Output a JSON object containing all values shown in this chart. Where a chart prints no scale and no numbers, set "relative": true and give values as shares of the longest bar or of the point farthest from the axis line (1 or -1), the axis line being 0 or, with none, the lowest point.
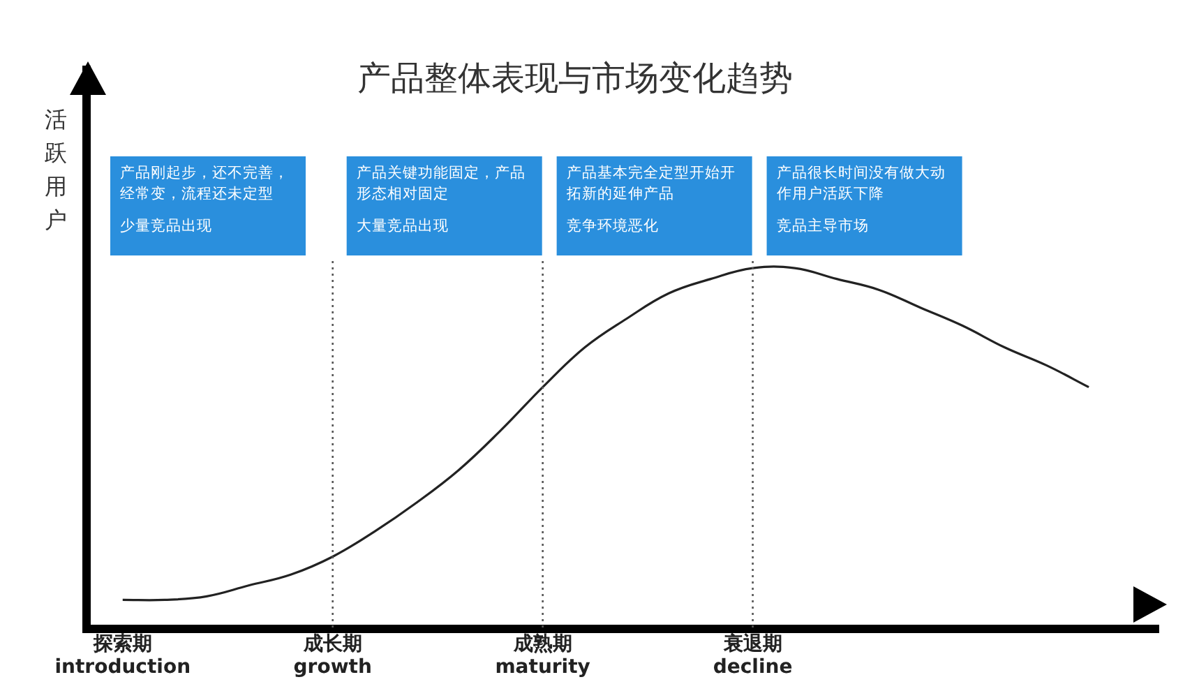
{
  "chart_data": {
    "type": "line",
    "title": "产品整体表现与市场变化趋势",
    "ylabel": "活跃用户",
    "relative": true,
    "categories": [
      "探索期\nintroduction",
      null,
      null,
      null,
      null,
      "成长期\ngrowth",
      null,
      null,
      null,
      null,
      "成熟期\nmaturity",
      null,
      null,
      null,
      null,
      "衰退期\ndecline",
      null,
      null,
      null,
      null,
      null,
      null,
      null,
      null
    ],
    "series": [
      {
        "color": "#222222",
        "values": [
          0.08,
          0.08,
          0.09,
          0.12,
          0.15,
          0.2,
          0.27,
          0.35,
          0.44,
          0.55,
          0.67,
          0.78,
          0.86,
          0.93,
          0.97,
          1,
          1,
          0.97,
          0.94,
          0.89,
          0.84,
          0.78,
          0.73,
          0.67
        ]
      }
    ],
    "ref_lines": [
      {
        "axis": "x",
        "value": "成长期\ngrowth",
        "line_style": "dotted"
      },
      {
        "axis": "x",
        "value": "成熟期\nmaturity",
        "line_style": "dotted"
      },
      {
        "axis": "x",
        "value": "衰退期\ndecline",
        "line_style": "dotted"
      }
    ],
    "annotations": [
      "产品刚起步，还不完善，经常变，流程还未定型",
      "少量竞品出现",
      "产品关键功能固定，产品形态相对固定",
      "大量竞品出现",
      "产品基本完全定型开始开拓新的延伸产品",
      "竞争环境恶化",
      "产品很长时间没有做大动作用户活跃下降",
      "竞品主导市场"
    ],
    "marker": "none",
    "line_style": "solid"
  }
}
